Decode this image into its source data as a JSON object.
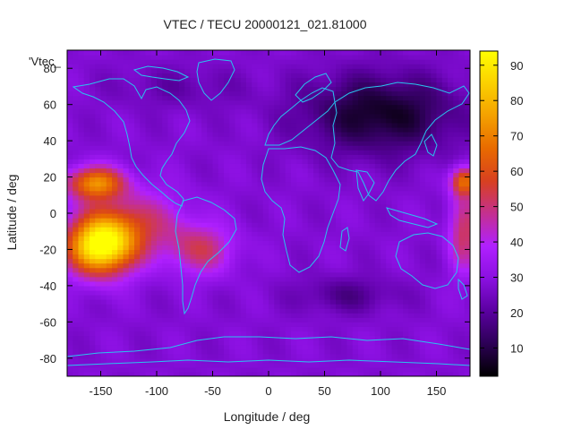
{
  "chart_data": {
    "type": "heatmap",
    "title": "VTEC / TECU 20000121_021.81000",
    "xlabel": "Longitude / deg",
    "ylabel": "Latitude / deg",
    "key_label": "'Vtec_",
    "xlim": [
      -180,
      180
    ],
    "ylim": [
      -90,
      90
    ],
    "xticks": [
      -150,
      -100,
      -50,
      0,
      50,
      100,
      150
    ],
    "yticks": [
      -80,
      -60,
      -40,
      -20,
      0,
      20,
      40,
      60,
      80
    ],
    "colorbar": {
      "range": [
        2,
        94
      ],
      "ticks": [
        10,
        20,
        30,
        40,
        50,
        60,
        70,
        80,
        90
      ],
      "palette": [
        "#000000",
        "#2c0055",
        "#5a00a0",
        "#8a10e0",
        "#b020ff",
        "#c43090",
        "#d84020",
        "#e86a00",
        "#f4a000",
        "#fbd000",
        "#ffff00"
      ]
    },
    "grid_resolution_deg": {
      "lon": 5,
      "lat": 2.5
    },
    "features": [
      {
        "name": "pacific-anomaly-south",
        "lon": -150,
        "lat": -18,
        "peak_tecu": 94
      },
      {
        "name": "pacific-anomaly-north",
        "lon": -155,
        "lat": 17,
        "peak_tecu": 78
      },
      {
        "name": "south-america-belt",
        "lon": -60,
        "lat": -20,
        "peak_tecu": 50
      },
      {
        "name": "western-pacific-edge",
        "lon": 175,
        "lat": 18,
        "peak_tecu": 65
      },
      {
        "name": "eastern-hemisphere-edge",
        "lon": 175,
        "lat": -10,
        "peak_tecu": 52
      },
      {
        "name": "asia-minimum",
        "lon": 100,
        "lat": 55,
        "peak_tecu": 3
      },
      {
        "name": "indian-ocean-minimum",
        "lon": 70,
        "lat": -45,
        "peak_tecu": 18
      },
      {
        "name": "background",
        "lon": 0,
        "lat": 0,
        "peak_tecu": 28
      }
    ]
  }
}
